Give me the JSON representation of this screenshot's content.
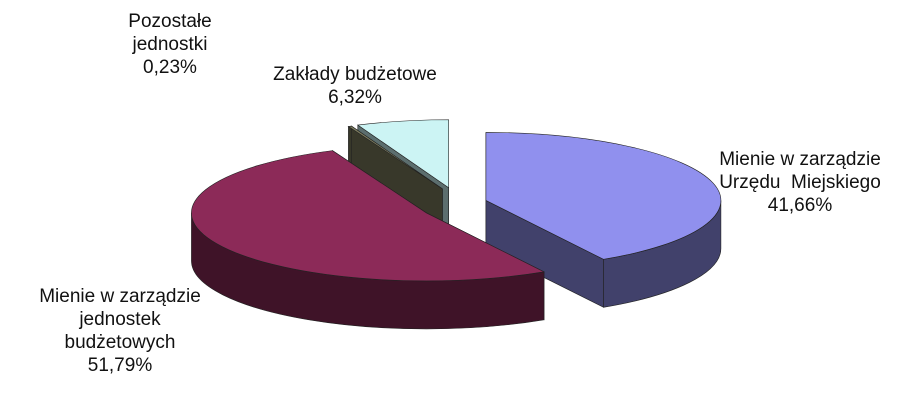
{
  "chart_data": {
    "type": "pie3d",
    "categories": [
      "Mienie w zarządzie\nUrzędu  Miejskiego",
      "Mienie w zarządzie\njednostek\nbudżetowych",
      "Pozostałe\njednostki",
      "Zakłady budżetowe"
    ],
    "values": [
      41.66,
      51.79,
      0.23,
      6.32
    ],
    "value_labels": [
      "41,66%",
      "51,79%",
      "0,23%",
      "6,32%"
    ],
    "colors": [
      "#9090ee",
      "#8c2a58",
      "#7c7c5e",
      "#ccf4f4"
    ]
  }
}
